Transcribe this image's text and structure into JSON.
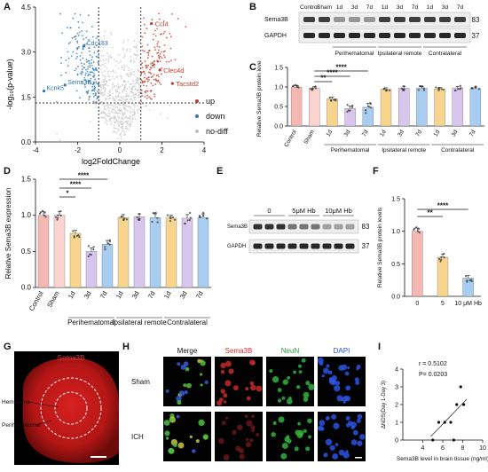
{
  "panels": {
    "A": {
      "label": "A",
      "xlabel": "log2FoldChange",
      "ylabel": "-log₁₀(p-value)",
      "xticks": [
        "-4",
        "-2",
        "0",
        "2",
        "4"
      ],
      "yticks": [
        "0.0",
        "1.5",
        "3.0",
        "4.5"
      ],
      "genes": [
        {
          "name": "Ccl4",
          "x": 1.5,
          "y": 3.95,
          "group": "up"
        },
        {
          "name": "Clec4d",
          "x": 1.9,
          "y": 2.4,
          "group": "up"
        },
        {
          "name": "Tacstd2",
          "x": 2.5,
          "y": 1.95,
          "group": "up"
        },
        {
          "name": "Cdc183",
          "x": -1.7,
          "y": 3.2,
          "group": "down"
        },
        {
          "name": "Sema3B",
          "x": -2.6,
          "y": 1.9,
          "group": "down"
        },
        {
          "name": "Kcnk5",
          "x": -3.6,
          "y": 1.7,
          "group": "down"
        }
      ],
      "legend": [
        {
          "label": "up",
          "color": "#c0392b"
        },
        {
          "label": "down",
          "color": "#2e78b7"
        },
        {
          "label": "no-diff",
          "color": "#bdbdbd"
        }
      ]
    },
    "B": {
      "label": "B",
      "rows": [
        "Sema3B",
        "GAPDH"
      ],
      "kda": [
        "83",
        "37"
      ],
      "lanes": [
        "Control",
        "Sham",
        "1d",
        "3d",
        "7d",
        "1d",
        "3d",
        "7d",
        "1d",
        "3d",
        "7d"
      ],
      "groups": [
        "Perihematomal",
        "Ipsilateral remote",
        "Contralateral"
      ]
    },
    "C": {
      "label": "C",
      "ylabel": "Relative Sema3B protein levels",
      "yticks": [
        "0.0",
        "0.5",
        "1.0",
        "1.5"
      ],
      "sig": [
        "**",
        "****",
        "****"
      ],
      "groups": [
        "Perihematomal",
        "Ipsilateral remote",
        "Contralateral"
      ]
    },
    "D": {
      "label": "D",
      "ylabel": "Relative Sema3B expression",
      "yticks": [
        "0.0",
        "0.5",
        "1.0",
        "1.5"
      ],
      "sig": [
        "*",
        "****",
        "****"
      ],
      "groups": [
        "Perihematomal",
        "Ipsilateral remote",
        "Contralateral"
      ]
    },
    "E": {
      "label": "E",
      "rows": [
        "Sema3B",
        "GAPDH"
      ],
      "kda": [
        "83",
        "37"
      ],
      "conditions": [
        "0",
        "5μM Hb",
        "10μM Hb"
      ]
    },
    "F": {
      "label": "F",
      "ylabel": "Relative Sema3B protein levels",
      "yticks": [
        "0.0",
        "0.5",
        "1.0",
        "1.5"
      ],
      "sig": [
        "**",
        "****"
      ],
      "categories": [
        "0",
        "5",
        "10 μM Hb"
      ]
    },
    "G": {
      "label": "G",
      "title": "Sema3B",
      "annotations": [
        "Hematoma",
        "Perihematomal"
      ]
    },
    "H": {
      "label": "H",
      "columns": [
        "Merge",
        "Sema3B",
        "NeuN",
        "DAPI"
      ],
      "column_colors": [
        "#111111",
        "#d0312d",
        "#2a9d3a",
        "#2b50d6"
      ],
      "rows": [
        "Sham",
        "ICH"
      ]
    },
    "I": {
      "label": "I",
      "r_text": "r = 0.5102",
      "p_text": "P= 0.0203",
      "xlabel": "Sema3B level in brain tissue (ng/ml)",
      "ylabel": "ΔNDS(Day 1-Day 3)",
      "xticks": [
        "4",
        "6",
        "8",
        "10"
      ],
      "yticks": [
        "0",
        "1",
        "2",
        "3",
        "4"
      ]
    }
  },
  "chart_data": [
    {
      "type": "scatter",
      "panel": "A",
      "xlabel": "log2FoldChange",
      "ylabel": "-log10(p-value)",
      "xlim": [
        -4,
        4
      ],
      "ylim": [
        0,
        4.5
      ],
      "thresholds": {
        "x": [
          -1,
          1
        ],
        "y": 1.3
      },
      "highlighted_up": [
        {
          "label": "Ccl4",
          "x": 1.5,
          "y": 3.95
        },
        {
          "label": "Clec4d",
          "x": 1.9,
          "y": 2.4
        },
        {
          "label": "Tacstd2",
          "x": 2.5,
          "y": 1.95
        }
      ],
      "highlighted_down": [
        {
          "label": "Cdc183",
          "x": -1.7,
          "y": 3.2
        },
        {
          "label": "Sema3B",
          "x": -2.6,
          "y": 1.9
        },
        {
          "label": "Kcnk5",
          "x": -3.6,
          "y": 1.7
        }
      ],
      "series": [
        {
          "name": "up",
          "color": "#c0392b"
        },
        {
          "name": "down",
          "color": "#2e78b7"
        },
        {
          "name": "no-diff",
          "color": "#bdbdbd"
        }
      ]
    },
    {
      "type": "bar",
      "panel": "C",
      "ylabel": "Relative Sema3B protein levels",
      "ylim": [
        0,
        1.5
      ],
      "categories": [
        "Control",
        "Sham",
        "1d",
        "3d",
        "7d",
        "1d",
        "3d",
        "7d",
        "1d",
        "3d",
        "7d"
      ],
      "values": [
        1.0,
        0.97,
        0.7,
        0.45,
        0.48,
        0.94,
        0.97,
        0.97,
        0.95,
        0.97,
        0.96
      ],
      "errors": [
        0.04,
        0.04,
        0.04,
        0.06,
        0.1,
        0.04,
        0.05,
        0.04,
        0.04,
        0.04,
        0.04
      ],
      "colors": [
        "#f5b7b1",
        "#fbd3cf",
        "#f7d58f",
        "#d9c6ef",
        "#a9cdf0",
        "#f7d58f",
        "#d9c6ef",
        "#a9cdf0",
        "#f7d58f",
        "#d9c6ef",
        "#a9cdf0"
      ]
    },
    {
      "type": "bar",
      "panel": "D",
      "ylabel": "Relative Sema3B expression",
      "ylim": [
        0,
        1.5
      ],
      "categories": [
        "Control",
        "Sham",
        "1d",
        "3d",
        "7d",
        "1d",
        "3d",
        "7d",
        "1d",
        "3d",
        "7d"
      ],
      "values": [
        1.0,
        1.0,
        0.75,
        0.5,
        0.6,
        0.97,
        0.98,
        0.97,
        0.96,
        0.96,
        0.97
      ],
      "errors": [
        0.05,
        0.05,
        0.04,
        0.05,
        0.05,
        0.04,
        0.04,
        0.05,
        0.04,
        0.05,
        0.05
      ],
      "colors": [
        "#f5b7b1",
        "#fbd3cf",
        "#f7d58f",
        "#d9c6ef",
        "#a9cdf0",
        "#f7d58f",
        "#d9c6ef",
        "#a9cdf0",
        "#f7d58f",
        "#d9c6ef",
        "#a9cdf0"
      ]
    },
    {
      "type": "bar",
      "panel": "F",
      "ylabel": "Relative Sema3B protein levels",
      "ylim": [
        0,
        1.5
      ],
      "categories": [
        "0",
        "5",
        "10 μM Hb"
      ],
      "values": [
        1.0,
        0.6,
        0.28
      ],
      "errors": [
        0.05,
        0.05,
        0.04
      ],
      "colors": [
        "#f5b7b1",
        "#f7d58f",
        "#a9cdf0"
      ]
    },
    {
      "type": "scatter",
      "panel": "I",
      "xlabel": "Sema3B level in brain tissue (ng/ml)",
      "ylabel": "ΔNDS(Day 1-Day 3)",
      "xlim": [
        2,
        10
      ],
      "ylim": [
        0,
        4
      ],
      "points": [
        {
          "x": 5.0,
          "y": 0.0
        },
        {
          "x": 5.6,
          "y": 1.0
        },
        {
          "x": 6.2,
          "y": 1.0
        },
        {
          "x": 6.8,
          "y": 1.0
        },
        {
          "x": 7.4,
          "y": 2.0
        },
        {
          "x": 7.8,
          "y": 3.0
        },
        {
          "x": 8.1,
          "y": 2.0
        },
        {
          "x": 7.1,
          "y": 0.0
        }
      ],
      "fit": {
        "x": [
          4.8,
          8.4
        ],
        "y": [
          0.2,
          2.3
        ]
      }
    }
  ]
}
